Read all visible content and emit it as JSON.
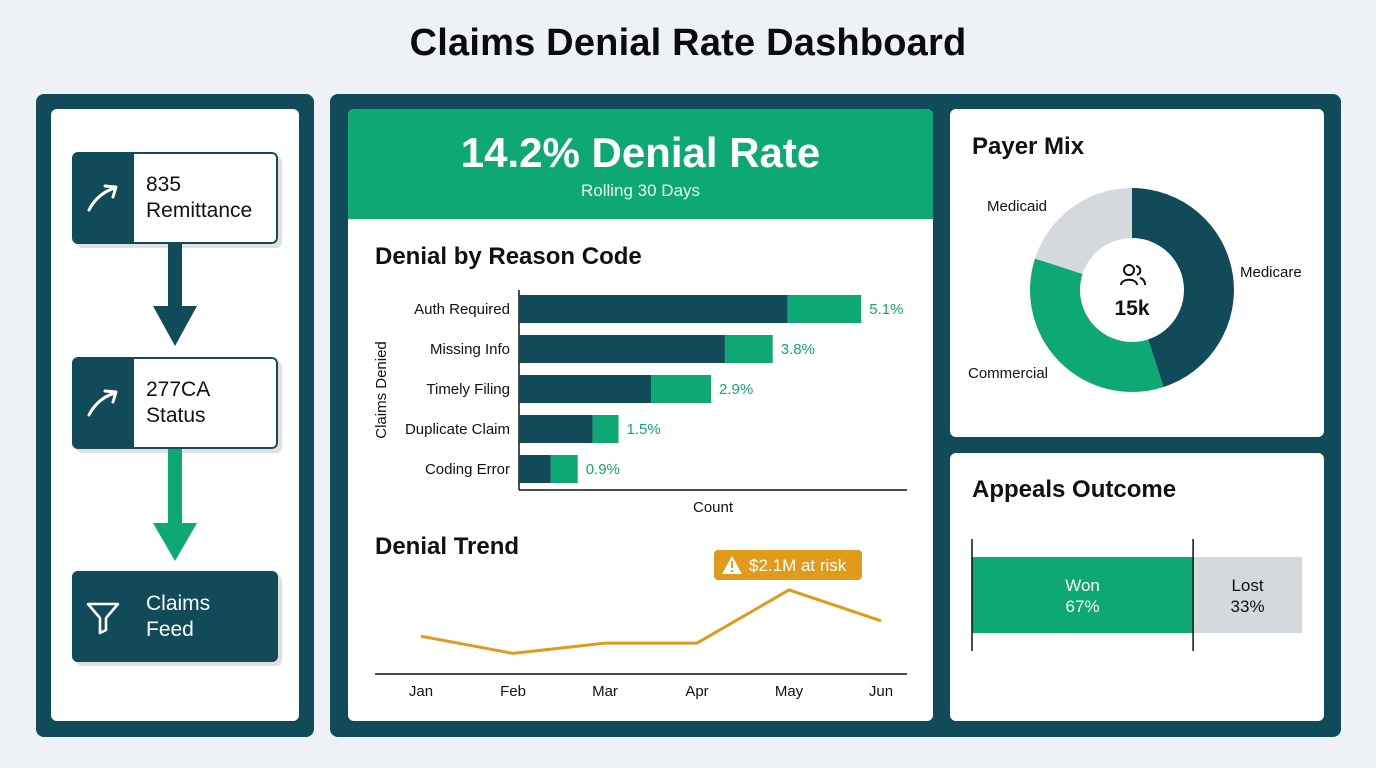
{
  "title": "Claims Denial Rate Dashboard",
  "flow": {
    "nodes": [
      {
        "line1": "835",
        "line2": "Remittance",
        "icon": "arrow-up-right-icon"
      },
      {
        "line1": "277CA",
        "line2": "Status",
        "icon": "arrow-up-right-icon"
      },
      {
        "line1": "Claims",
        "line2": "Feed",
        "icon": "funnel-icon"
      }
    ]
  },
  "kpi": {
    "value": "14.2% Denial Rate",
    "subtitle": "Rolling 30 Days"
  },
  "reason": {
    "title": "Denial by Reason Code",
    "ylabel": "Claims Denied",
    "xlabel": "Count",
    "labels": [
      "Auth Required",
      "Missing Info",
      "Timely Filing",
      "Duplicate Claim",
      "Coding Error"
    ],
    "value_labels": [
      "5.1%",
      "3.8%",
      "2.9%",
      "1.5%",
      "0.9%"
    ]
  },
  "trend": {
    "title": "Denial Trend",
    "months": [
      "Jan",
      "Feb",
      "Mar",
      "Apr",
      "May",
      "Jun"
    ],
    "callout": "$2.1M at risk"
  },
  "payer": {
    "title": "Payer Mix",
    "center_value": "15k",
    "labels": [
      "Medicare",
      "Commercial",
      "Medicaid"
    ]
  },
  "appeals": {
    "title": "Appeals Outcome",
    "won_label": "Won",
    "won_value": "67%",
    "lost_label": "Lost",
    "lost_value": "33%",
    "won_share": 0.67
  },
  "colors": {
    "dark": "#114b5a",
    "green": "#0ea875",
    "gold": "#e19b1b",
    "gray": "#d5d9dd"
  },
  "chart_data": [
    {
      "type": "bar",
      "title": "Denial by Reason Code",
      "ylabel": "Claims Denied",
      "xlabel": "Count",
      "categories": [
        "Auth Required",
        "Missing Info",
        "Timely Filing",
        "Duplicate Claim",
        "Coding Error"
      ],
      "series": [
        {
          "values": [
            270,
            207,
            133,
            74,
            32
          ]
        },
        {
          "values": [
            74,
            48,
            60,
            26,
            27
          ]
        }
      ],
      "data_labels": [
        "5.1%",
        "3.8%",
        "2.9%",
        "1.5%",
        "0.9%"
      ],
      "xlim": [
        0,
        390
      ],
      "grid": false
    },
    {
      "type": "line",
      "title": "Denial Trend",
      "x": [
        "Jan",
        "Feb",
        "Mar",
        "Apr",
        "May",
        "Jun"
      ],
      "values": [
        2.2,
        1.2,
        1.8,
        1.8,
        4.9,
        3.1
      ],
      "ylim": [
        0,
        6
      ],
      "annotation": {
        "x": "May",
        "text": "$2.1M at risk"
      }
    },
    {
      "type": "pie",
      "title": "Payer Mix",
      "categories": [
        "Medicare",
        "Commercial",
        "Medicaid"
      ],
      "values": [
        45,
        35,
        20
      ],
      "center_label": "15k"
    },
    {
      "type": "bar",
      "title": "Appeals Outcome",
      "categories": [
        "Won",
        "Lost"
      ],
      "values": [
        67,
        33
      ],
      "stacked": true
    }
  ]
}
